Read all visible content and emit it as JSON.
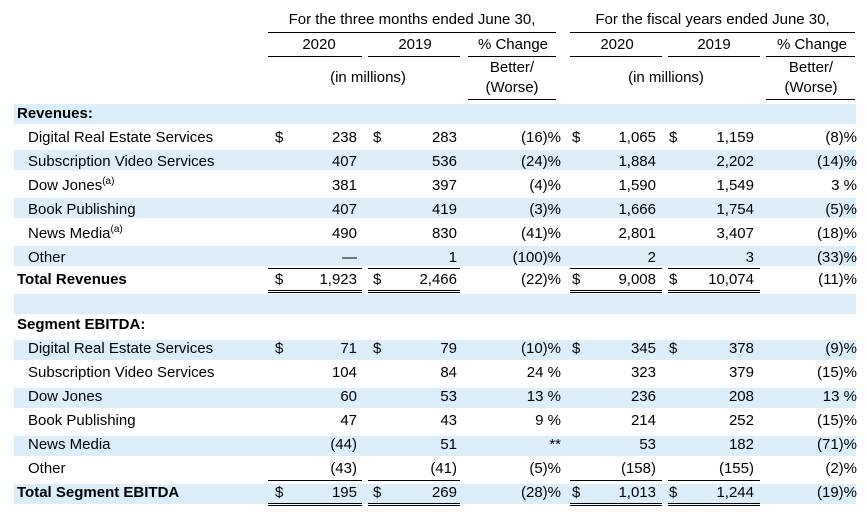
{
  "header": {
    "three_months_title": "For the three months ended June 30,",
    "fiscal_years_title": "For the fiscal years ended June 30,",
    "col_2020": "2020",
    "col_2019": "2019",
    "col_change": "% Change",
    "in_millions": "(in millions)",
    "better": "Better/",
    "worse": "(Worse)"
  },
  "revenues": {
    "title": "Revenues:",
    "rows": [
      {
        "label": "Digital Real Estate Services",
        "sup": "",
        "q_cur_sign": "$",
        "q_cur": "238",
        "q_prev_sign": "$",
        "q_prev": "283",
        "q_chg": "(16)%",
        "f_cur_sign": "$",
        "f_cur": "1,065",
        "f_prev_sign": "$",
        "f_prev": "1,159",
        "f_chg": "(8)%"
      },
      {
        "label": "Subscription Video Services",
        "sup": "",
        "q_cur_sign": "",
        "q_cur": "407",
        "q_prev_sign": "",
        "q_prev": "536",
        "q_chg": "(24)%",
        "f_cur_sign": "",
        "f_cur": "1,884",
        "f_prev_sign": "",
        "f_prev": "2,202",
        "f_chg": "(14)%"
      },
      {
        "label": "Dow Jones",
        "sup": "(a)",
        "q_cur_sign": "",
        "q_cur": "381",
        "q_prev_sign": "",
        "q_prev": "397",
        "q_chg": "(4)%",
        "f_cur_sign": "",
        "f_cur": "1,590",
        "f_prev_sign": "",
        "f_prev": "1,549",
        "f_chg": "3 %"
      },
      {
        "label": "Book Publishing",
        "sup": "",
        "q_cur_sign": "",
        "q_cur": "407",
        "q_prev_sign": "",
        "q_prev": "419",
        "q_chg": "(3)%",
        "f_cur_sign": "",
        "f_cur": "1,666",
        "f_prev_sign": "",
        "f_prev": "1,754",
        "f_chg": "(5)%"
      },
      {
        "label": "News Media",
        "sup": "(a)",
        "q_cur_sign": "",
        "q_cur": "490",
        "q_prev_sign": "",
        "q_prev": "830",
        "q_chg": "(41)%",
        "f_cur_sign": "",
        "f_cur": "2,801",
        "f_prev_sign": "",
        "f_prev": "3,407",
        "f_chg": "(18)%"
      },
      {
        "label": "Other",
        "sup": "",
        "q_cur_sign": "",
        "q_cur": "—",
        "q_prev_sign": "",
        "q_prev": "1",
        "q_chg": "(100)%",
        "f_cur_sign": "",
        "f_cur": "2",
        "f_prev_sign": "",
        "f_prev": "3",
        "f_chg": "(33)%"
      }
    ],
    "total": {
      "label": "Total Revenues",
      "q_cur_sign": "$",
      "q_cur": "1,923",
      "q_prev_sign": "$",
      "q_prev": "2,466",
      "q_chg": "(22)%",
      "f_cur_sign": "$",
      "f_cur": "9,008",
      "f_prev_sign": "$",
      "f_prev": "10,074",
      "f_chg": "(11)%"
    }
  },
  "ebitda": {
    "title": "Segment EBITDA:",
    "rows": [
      {
        "label": "Digital Real Estate Services",
        "sup": "",
        "q_cur_sign": "$",
        "q_cur": "71",
        "q_prev_sign": "$",
        "q_prev": "79",
        "q_chg": "(10)%",
        "f_cur_sign": "$",
        "f_cur": "345",
        "f_prev_sign": "$",
        "f_prev": "378",
        "f_chg": "(9)%"
      },
      {
        "label": "Subscription Video Services",
        "sup": "",
        "q_cur_sign": "",
        "q_cur": "104",
        "q_prev_sign": "",
        "q_prev": "84",
        "q_chg": "24 %",
        "f_cur_sign": "",
        "f_cur": "323",
        "f_prev_sign": "",
        "f_prev": "379",
        "f_chg": "(15)%"
      },
      {
        "label": "Dow Jones",
        "sup": "",
        "q_cur_sign": "",
        "q_cur": "60",
        "q_prev_sign": "",
        "q_prev": "53",
        "q_chg": "13 %",
        "f_cur_sign": "",
        "f_cur": "236",
        "f_prev_sign": "",
        "f_prev": "208",
        "f_chg": "13 %"
      },
      {
        "label": "Book Publishing",
        "sup": "",
        "q_cur_sign": "",
        "q_cur": "47",
        "q_prev_sign": "",
        "q_prev": "43",
        "q_chg": "9 %",
        "f_cur_sign": "",
        "f_cur": "214",
        "f_prev_sign": "",
        "f_prev": "252",
        "f_chg": "(15)%"
      },
      {
        "label": "News Media",
        "sup": "",
        "q_cur_sign": "",
        "q_cur": "(44)",
        "q_prev_sign": "",
        "q_prev": "51",
        "q_chg": "**",
        "f_cur_sign": "",
        "f_cur": "53",
        "f_prev_sign": "",
        "f_prev": "182",
        "f_chg": "(71)%"
      },
      {
        "label": "Other",
        "sup": "",
        "q_cur_sign": "",
        "q_cur": "(43)",
        "q_prev_sign": "",
        "q_prev": "(41)",
        "q_chg": "(5)%",
        "f_cur_sign": "",
        "f_cur": "(158)",
        "f_prev_sign": "",
        "f_prev": "(155)",
        "f_chg": "(2)%"
      }
    ],
    "total": {
      "label": "Total Segment EBITDA",
      "q_cur_sign": "$",
      "q_cur": "195",
      "q_prev_sign": "$",
      "q_prev": "269",
      "q_chg": "(28)%",
      "f_cur_sign": "$",
      "f_cur": "1,013",
      "f_prev_sign": "$",
      "f_prev": "1,244",
      "f_chg": "(19)%"
    }
  }
}
